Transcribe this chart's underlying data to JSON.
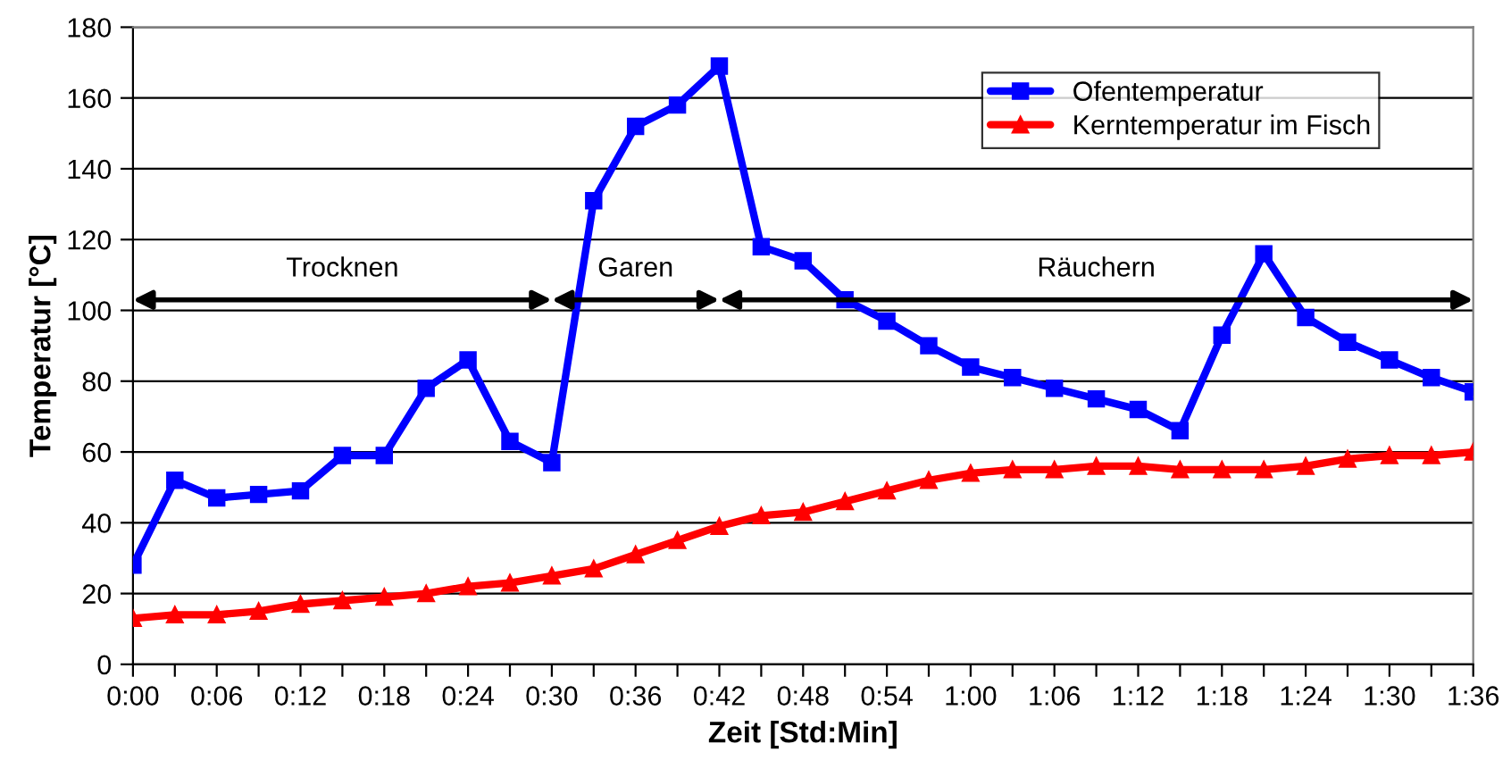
{
  "chart_data": {
    "type": "line",
    "xlabel": "Zeit [Std:Min]",
    "ylabel": "Temperatur [°C]",
    "categories": [
      "0:00",
      null,
      "0:06",
      null,
      "0:12",
      null,
      "0:18",
      null,
      "0:24",
      null,
      "0:30",
      null,
      "0:36",
      null,
      "0:42",
      null,
      "0:48",
      null,
      "0:54",
      null,
      "1:00",
      null,
      "1:06",
      null,
      "1:12",
      null,
      "1:18",
      null,
      "1:24",
      null,
      "1:30",
      null,
      "1:36"
    ],
    "series": [
      {
        "name": "Ofentemperatur",
        "color": "#0000ff",
        "marker": "square",
        "values": [
          28,
          52,
          47,
          48,
          49,
          59,
          59,
          78,
          86,
          63,
          57,
          131,
          152,
          158,
          169,
          118,
          114,
          103,
          97,
          90,
          84,
          81,
          78,
          75,
          72,
          66,
          93,
          116,
          98,
          91,
          86,
          81,
          77
        ]
      },
      {
        "name": "Kerntemperatur im Fisch",
        "color": "#ff0000",
        "marker": "triangle",
        "values": [
          13,
          14,
          14,
          15,
          17,
          18,
          19,
          20,
          22,
          23,
          25,
          27,
          31,
          35,
          39,
          42,
          43,
          46,
          49,
          52,
          54,
          55,
          55,
          56,
          56,
          55,
          55,
          55,
          56,
          58,
          59,
          59,
          60
        ]
      }
    ],
    "annotations": [
      "Trocknen",
      "Garen",
      "Räuchern"
    ],
    "ylim": [
      0,
      180
    ],
    "yticks": [
      0,
      20,
      40,
      60,
      80,
      100,
      120,
      140,
      160,
      180
    ],
    "grid": "y",
    "legend": "top right",
    "line_style": "solid"
  }
}
